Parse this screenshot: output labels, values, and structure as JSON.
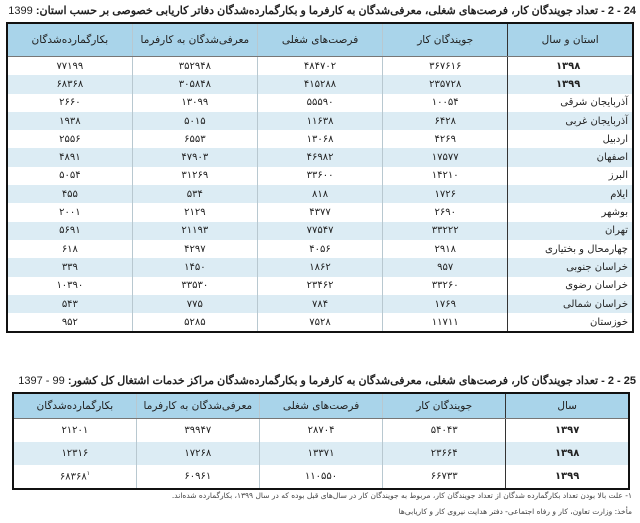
{
  "table1": {
    "title": "24 - 2 - تعداد جویندگان کار، فرصت‌های شغلی، معرفی‌شدگان به کارفرما و بکارگمارده‌شدگان دفاتر کاریابی خصوصی بر حسب استان:",
    "title_year": "1399",
    "headers": [
      "استان و سال",
      "جویندگان کار",
      "فرصت‌های شغلی",
      "معرفی‌شدگان به کارفرما",
      "بکارگمارده‌شدگان"
    ],
    "rows": [
      [
        "۱۳۹۸",
        "۳۶۷۶۱۶",
        "۴۸۴۷۰۲",
        "۳۵۲۹۴۸",
        "۷۷۱۹۹"
      ],
      [
        "۱۳۹۹",
        "۲۳۵۷۲۸",
        "۴۱۵۲۸۸",
        "۳۰۵۸۴۸",
        "۶۸۳۶۸"
      ],
      [
        "آذربایجان شرقی",
        "۱۰۰۵۴",
        "۵۵۵۹۰",
        "۱۳۰۹۹",
        "۲۶۶۰"
      ],
      [
        "آذربایجان غربی",
        "۶۴۲۸",
        "۱۱۶۳۸",
        "۵۰۱۵",
        "۱۹۳۸"
      ],
      [
        "اردبیل",
        "۴۲۶۹",
        "۱۳۰۶۸",
        "۶۵۵۳",
        "۲۵۵۶"
      ],
      [
        "اصفهان",
        "۱۷۵۷۷",
        "۴۶۹۸۲",
        "۴۷۹۰۳",
        "۴۸۹۱"
      ],
      [
        "البرز",
        "۱۴۲۱۰",
        "۳۳۶۰۰",
        "۳۱۲۶۹",
        "۵۰۵۴"
      ],
      [
        "ایلام",
        "۱۷۲۶",
        "۸۱۸",
        "۵۳۴",
        "۴۵۵"
      ],
      [
        "بوشهر",
        "۲۶۹۰",
        "۴۳۷۷",
        "۲۱۲۹",
        "۲۰۰۱"
      ],
      [
        "تهران",
        "۳۳۲۲۲",
        "۷۷۵۴۷",
        "۲۱۱۹۳",
        "۵۶۹۱"
      ],
      [
        "چهارمحال و بختیاری",
        "۲۹۱۸",
        "۴۰۵۶",
        "۴۲۹۷",
        "۶۱۸"
      ],
      [
        "خراسان جنوبی",
        "۹۵۷",
        "۱۸۶۲",
        "۱۴۵۰",
        "۳۳۹"
      ],
      [
        "خراسان رضوی",
        "۳۳۲۶۰",
        "۲۳۴۶۲",
        "۳۳۵۳۰",
        "۱۰۳۹۰"
      ],
      [
        "خراسان شمالی",
        "۱۷۶۹",
        "۷۸۴",
        "۷۷۵",
        "۵۴۳"
      ],
      [
        "خوزستان",
        "۱۱۷۱۱",
        "۷۵۲۸",
        "۵۲۸۵",
        "۹۵۲"
      ]
    ]
  },
  "table2": {
    "title": "25 - 2 - تعداد جویندگان کار، فرصت‌های شغلی، معرفی‌شدگان به کارفرما و بکارگمارده‌شدگان مراکز خدمات اشتغال کل کشور:",
    "title_year": "99 - 1397",
    "headers": [
      "سال",
      "جویندگان کار",
      "فرصت‌های شغلی",
      "معرفی‌شدگان به کارفرما",
      "بکارگمارده‌شدگان"
    ],
    "rows": [
      [
        "۱۳۹۷",
        "۵۴۰۴۳",
        "۲۸۷۰۴",
        "۳۹۹۴۷",
        "۲۱۲۰۱"
      ],
      [
        "۱۳۹۸",
        "۲۳۶۶۴",
        "۱۳۳۷۱",
        "۱۷۲۶۸",
        "۱۲۳۱۶"
      ],
      [
        "۱۳۹۹",
        "۶۶۷۳۳",
        "۱۱۰۵۵۰",
        "۶۰۹۶۱",
        "۶۸۳۶۸"
      ]
    ],
    "footnote_mark": "۱",
    "footnote": "۱- علت بالا بودن تعداد بکارگمارده شدگان از تعداد جویندگان کار، مربوط به جویندگان کار در سال‌های قبل بوده که در سال ۱۳۹۹، بکارگمارده شده‌اند.",
    "source": "مأخذ: وزارت تعاون، کار و رفاه اجتماعی- دفتر هدایت نیروی کار و کاریابی‌ها"
  },
  "colors": {
    "header": "#a9d4ea",
    "stripe": "#dcecf4",
    "border": "#111111"
  }
}
